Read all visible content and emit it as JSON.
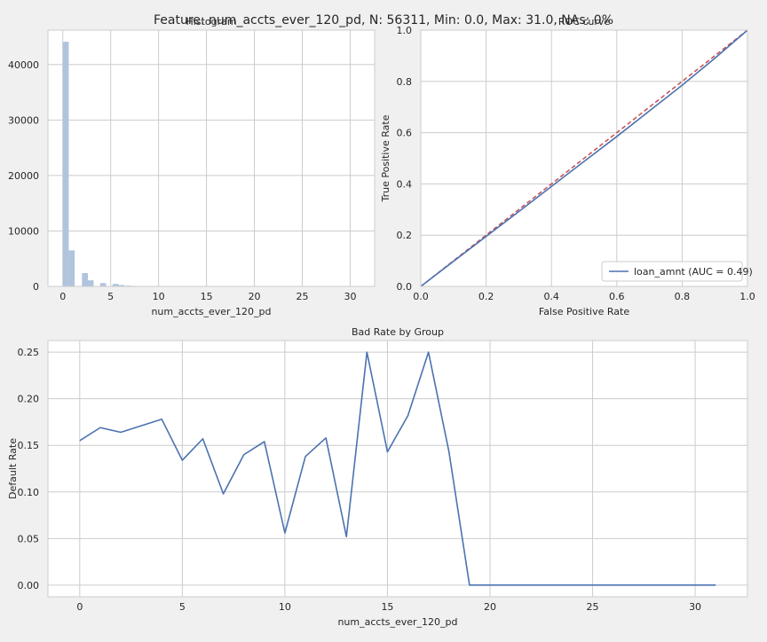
{
  "figure": {
    "suptitle": "Feature: num_accts_ever_120_pd, N: 56311, Min: 0.0, Max: 31.0, NAs: 0%"
  },
  "chart_data": [
    {
      "type": "bar",
      "title": "Histogram",
      "xlabel": "num_accts_ever_120_pd",
      "ylabel": "",
      "xlim": [
        -1.55,
        32.55
      ],
      "ylim": [
        0,
        46200
      ],
      "xticks": [
        "0",
        "5",
        "10",
        "15",
        "20",
        "25",
        "30"
      ],
      "yticks": [
        "0",
        "10000",
        "20000",
        "30000",
        "40000"
      ],
      "bin_width": 0.62,
      "bars": [
        {
          "x": 0,
          "value": 44100
        },
        {
          "x": 0.62,
          "value": 6500
        },
        {
          "x": 2.0,
          "value": 2400
        },
        {
          "x": 2.6,
          "value": 1100
        },
        {
          "x": 3.9,
          "value": 600
        },
        {
          "x": 5.2,
          "value": 450
        },
        {
          "x": 5.8,
          "value": 250
        },
        {
          "x": 6.5,
          "value": 150
        },
        {
          "x": 7.1,
          "value": 100
        },
        {
          "x": 7.8,
          "value": 80
        },
        {
          "x": 8.4,
          "value": 50
        },
        {
          "x": 9.1,
          "value": 30
        },
        {
          "x": 9.7,
          "value": 25
        },
        {
          "x": 10.4,
          "value": 20
        },
        {
          "x": 11.0,
          "value": 15
        },
        {
          "x": 11.7,
          "value": 10
        },
        {
          "x": 12.3,
          "value": 8
        },
        {
          "x": 13.0,
          "value": 6
        },
        {
          "x": 13.6,
          "value": 5
        },
        {
          "x": 14.3,
          "value": 4
        },
        {
          "x": 14.9,
          "value": 3
        },
        {
          "x": 16.2,
          "value": 3
        },
        {
          "x": 16.9,
          "value": 2
        },
        {
          "x": 18.1,
          "value": 2
        },
        {
          "x": 19.4,
          "value": 1
        },
        {
          "x": 30.4,
          "value": 1
        }
      ],
      "color": "#b0c4de",
      "grid": true
    },
    {
      "type": "line",
      "title": "ROC curve",
      "xlabel": "False Positive Rate",
      "ylabel": "True Positive Rate",
      "xlim": [
        0,
        1
      ],
      "ylim": [
        0,
        1
      ],
      "xticks": [
        "0.0",
        "0.2",
        "0.4",
        "0.6",
        "0.8",
        "1.0"
      ],
      "yticks": [
        "0.0",
        "0.2",
        "0.4",
        "0.6",
        "0.8",
        "1.0"
      ],
      "series": [
        {
          "name": "loan_amnt (AUC = 0.49)",
          "color": "#4c72b0",
          "x": [
            0,
            0.1,
            0.2,
            0.3,
            0.4,
            0.5,
            0.6,
            0.7,
            0.8,
            0.9,
            1.0
          ],
          "y": [
            0,
            0.098,
            0.195,
            0.292,
            0.39,
            0.488,
            0.585,
            0.685,
            0.785,
            0.89,
            1.0
          ]
        }
      ],
      "reference_line": {
        "x": [
          0,
          1
        ],
        "y": [
          0,
          1
        ],
        "color": "#c44e52",
        "style": "dashed"
      },
      "legend": "lower-right",
      "grid": true
    },
    {
      "type": "line",
      "title": "Bad Rate by Group",
      "xlabel": "num_accts_ever_120_pd",
      "ylabel": "Default Rate",
      "xlim": [
        -1.55,
        32.55
      ],
      "ylim": [
        -0.0125,
        0.2625
      ],
      "xticks": [
        "0",
        "5",
        "10",
        "15",
        "20",
        "25",
        "30"
      ],
      "yticks": [
        "0.00",
        "0.05",
        "0.10",
        "0.15",
        "0.20",
        "0.25"
      ],
      "series": [
        {
          "color": "#4c72b0",
          "x": [
            0,
            1,
            2,
            3,
            4,
            5,
            6,
            7,
            8,
            9,
            10,
            11,
            12,
            13,
            14,
            15,
            16,
            17,
            18,
            19,
            20,
            21,
            22,
            23,
            24,
            25,
            26,
            27,
            28,
            29,
            30,
            31
          ],
          "y": [
            0.155,
            0.169,
            0.164,
            0.171,
            0.178,
            0.134,
            0.157,
            0.098,
            0.14,
            0.154,
            0.056,
            0.138,
            0.158,
            0.052,
            0.25,
            0.143,
            0.182,
            0.25,
            0.143,
            0,
            0,
            0,
            0,
            0,
            0,
            0,
            0,
            0,
            0,
            0,
            0,
            0
          ]
        }
      ],
      "grid": true
    }
  ]
}
